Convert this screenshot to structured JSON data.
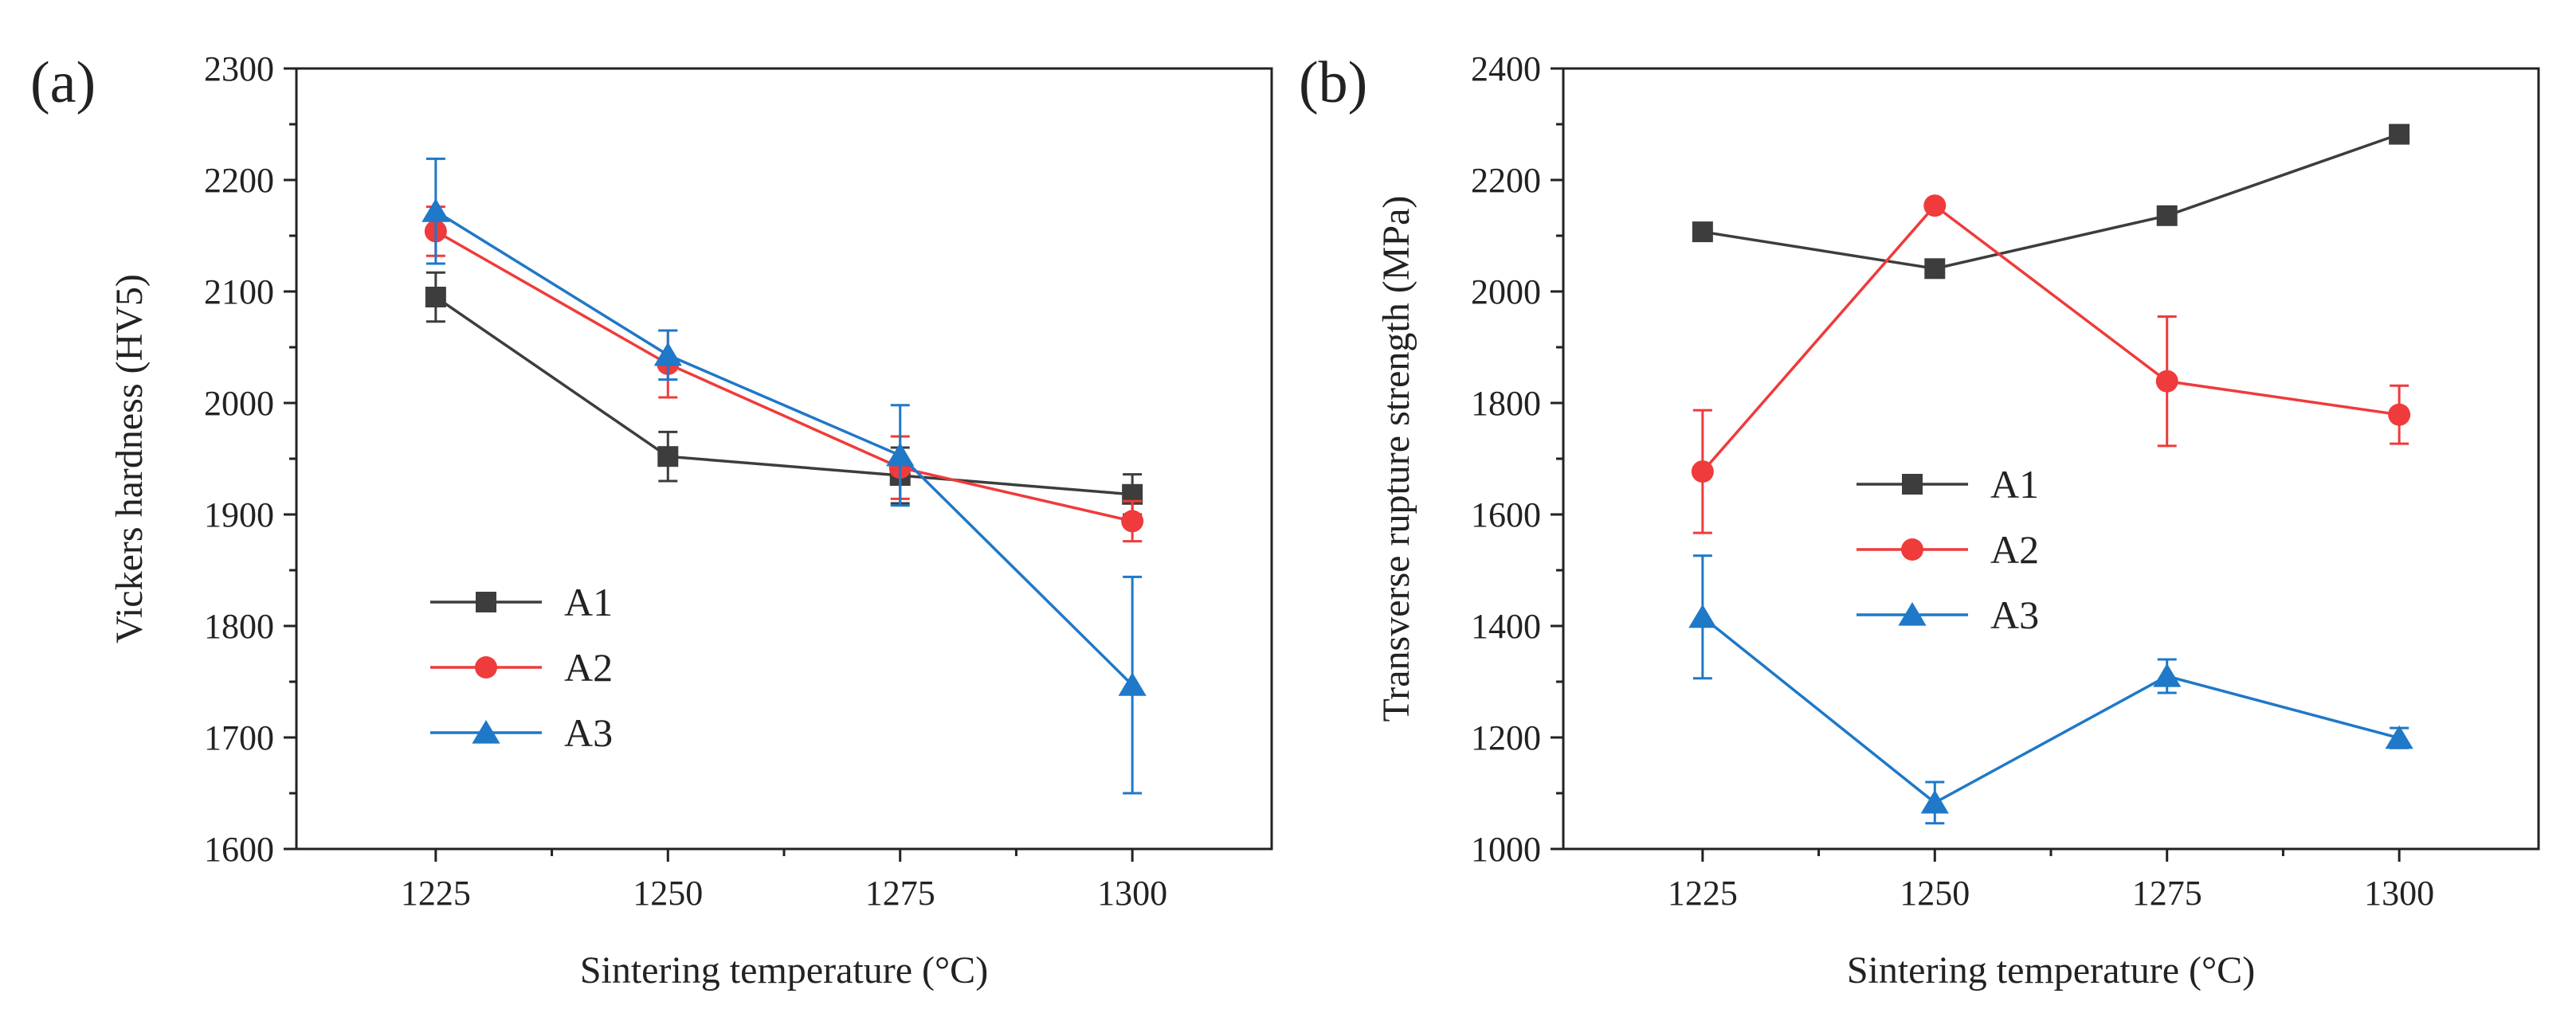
{
  "figure": {
    "panels": [
      {
        "label": "(a)"
      },
      {
        "label": "(b)"
      }
    ]
  },
  "chart_data": [
    {
      "type": "line",
      "panel": "(a)",
      "xlabel": "Sintering temperature (°C)",
      "ylabel": "Vickers hardness (HV5)",
      "categories": [
        "1225",
        "1250",
        "1275",
        "1300"
      ],
      "x": [
        1225,
        1250,
        1275,
        1300
      ],
      "xlim": [
        1210,
        1315
      ],
      "ylim": [
        1600,
        2300
      ],
      "yticks": [
        1600,
        1700,
        1800,
        1900,
        2000,
        2100,
        2200,
        2300
      ],
      "legend_position": "lower-left",
      "series": [
        {
          "name": "A1",
          "color": "#3d3d3d",
          "marker": "square",
          "values": [
            2095,
            1952,
            1935,
            1918
          ],
          "errors": [
            22,
            22,
            25,
            18
          ]
        },
        {
          "name": "A2",
          "color": "#ef3b3b",
          "marker": "circle",
          "values": [
            2154,
            2035,
            1942,
            1894
          ],
          "errors": [
            22,
            30,
            28,
            18
          ]
        },
        {
          "name": "A3",
          "color": "#1f78c8",
          "marker": "triangle",
          "values": [
            2172,
            2043,
            1953,
            1747
          ],
          "errors": [
            47,
            22,
            45,
            97
          ]
        }
      ]
    },
    {
      "type": "line",
      "panel": "(b)",
      "xlabel": "Sintering temperature (°C)",
      "ylabel": "Transverse rupture strength (MPa)",
      "categories": [
        "1225",
        "1250",
        "1275",
        "1300"
      ],
      "x": [
        1225,
        1250,
        1275,
        1300
      ],
      "xlim": [
        1210,
        1315
      ],
      "ylim": [
        1000,
        2400
      ],
      "yticks": [
        1000,
        1200,
        1400,
        1600,
        1800,
        2000,
        2200,
        2400
      ],
      "legend_position": "center-left",
      "series": [
        {
          "name": "A1",
          "color": "#3d3d3d",
          "marker": "square",
          "values": [
            2107,
            2041,
            2136,
            2282
          ],
          "errors": [
            0,
            0,
            0,
            0
          ]
        },
        {
          "name": "A2",
          "color": "#ef3b3b",
          "marker": "circle",
          "values": [
            1677,
            2154,
            1839,
            1779
          ],
          "errors": [
            110,
            0,
            116,
            52
          ]
        },
        {
          "name": "A3",
          "color": "#1f78c8",
          "marker": "triangle",
          "values": [
            1416,
            1083,
            1310,
            1199
          ],
          "errors": [
            110,
            37,
            30,
            18
          ]
        }
      ]
    }
  ]
}
